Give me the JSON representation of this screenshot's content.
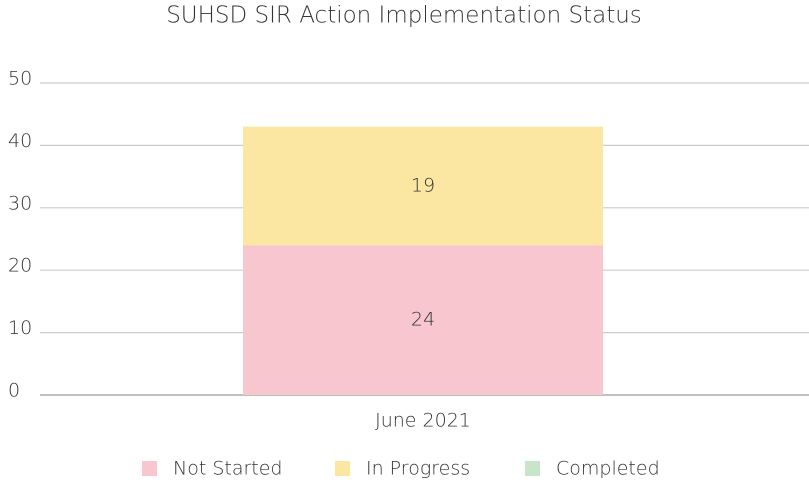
{
  "chart_data": {
    "type": "stacked_bar",
    "title": "SUHSD SIR Action Implementation Status",
    "categories": [
      "June 2021"
    ],
    "series": [
      {
        "name": "Not Started",
        "color": "#f7c6ce",
        "values": [
          24
        ]
      },
      {
        "name": "In Progress",
        "color": "#fbe7a1",
        "values": [
          19
        ]
      },
      {
        "name": "Completed",
        "color": "#c6e5c9",
        "values": [
          0
        ]
      }
    ],
    "ylim": [
      0,
      50
    ],
    "yticks": [
      0,
      10,
      20,
      30,
      40,
      50
    ],
    "grid": true,
    "legend": "bottom"
  }
}
